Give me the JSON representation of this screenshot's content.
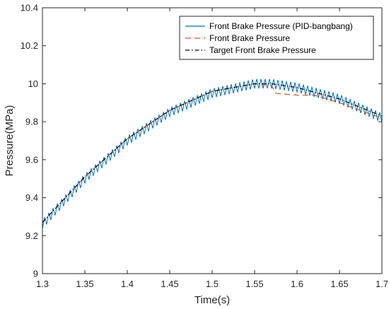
{
  "chart_data": {
    "type": "line",
    "title": "",
    "xlabel": "Time(s)",
    "ylabel": "Pressure(MPa)",
    "xlim": [
      1.3,
      1.7
    ],
    "ylim": [
      9.0,
      10.4
    ],
    "xticks": [
      "1.3",
      "1.35",
      "1.4",
      "1.45",
      "1.5",
      "1.55",
      "1.6",
      "1.65",
      "1.7"
    ],
    "yticks": [
      "9",
      "9.2",
      "9.4",
      "9.6",
      "9.8",
      "10",
      "10.2",
      "10.4"
    ],
    "grid": false,
    "legend_position": "top-right",
    "series": [
      {
        "name": "Front Brake Pressure (PID-bangbang)",
        "color": "#0072BD",
        "style": "solid",
        "oscillation_amplitude_mpa": 0.025,
        "oscillation_period_s": 0.005,
        "x": [
          1.3,
          1.35,
          1.4,
          1.45,
          1.5,
          1.55,
          1.57,
          1.6,
          1.65,
          1.7
        ],
        "y": [
          9.26,
          9.5,
          9.7,
          9.85,
          9.95,
          10.0,
          10.0,
          9.98,
          9.92,
          9.82
        ]
      },
      {
        "name": "Front Brake Pressure",
        "color": "#D95319",
        "style": "dashed",
        "x": [
          1.3,
          1.35,
          1.4,
          1.45,
          1.5,
          1.55,
          1.57,
          1.575,
          1.6,
          1.62,
          1.65,
          1.68,
          1.7
        ],
        "y": [
          9.27,
          9.51,
          9.71,
          9.86,
          9.96,
          10.0,
          9.99,
          9.95,
          9.94,
          9.94,
          9.9,
          9.85,
          9.82
        ]
      },
      {
        "name": "Target Front Brake Pressure",
        "color": "#000000",
        "style": "dashdot",
        "x": [
          1.3,
          1.35,
          1.4,
          1.45,
          1.5,
          1.55,
          1.57,
          1.6,
          1.65,
          1.7
        ],
        "y": [
          9.27,
          9.51,
          9.71,
          9.86,
          9.96,
          10.0,
          10.0,
          9.98,
          9.92,
          9.83
        ]
      }
    ]
  }
}
